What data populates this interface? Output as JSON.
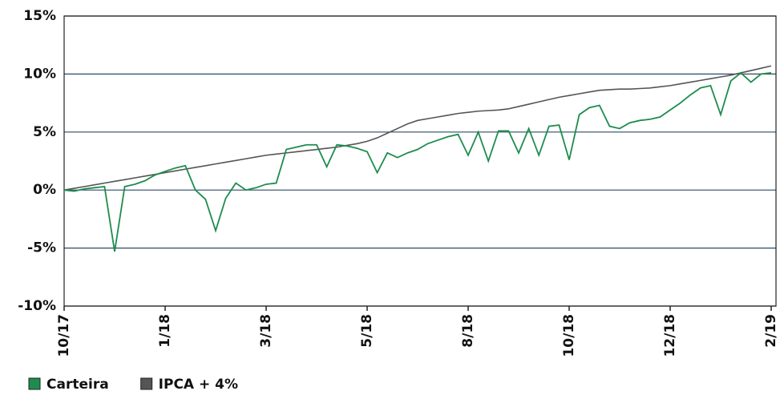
{
  "chart_data": {
    "type": "line",
    "categories": [
      "10/17",
      null,
      null,
      null,
      null,
      null,
      null,
      null,
      null,
      null,
      "1/18",
      null,
      null,
      null,
      null,
      null,
      null,
      null,
      null,
      null,
      "3/18",
      null,
      null,
      null,
      null,
      null,
      null,
      null,
      null,
      null,
      "5/18",
      null,
      null,
      null,
      null,
      null,
      null,
      null,
      null,
      null,
      "8/18",
      null,
      null,
      null,
      null,
      null,
      null,
      null,
      null,
      null,
      "10/18",
      null,
      null,
      null,
      null,
      null,
      null,
      null,
      null,
      null,
      "12/18",
      null,
      null,
      null,
      null,
      null,
      null,
      null,
      null,
      null,
      "2/19"
    ],
    "series": [
      {
        "name": "Carteira",
        "color": "#1e8c4e",
        "values": [
          0,
          -0.1,
          0.1,
          0.2,
          0.3,
          -5.3,
          0.3,
          0.5,
          0.8,
          1.3,
          1.6,
          1.9,
          2.1,
          0.0,
          -0.8,
          -3.5,
          -0.7,
          0.6,
          0.0,
          0.2,
          0.5,
          0.6,
          3.5,
          3.7,
          3.9,
          3.9,
          2.0,
          3.9,
          3.8,
          3.6,
          3.3,
          1.5,
          3.2,
          2.8,
          3.2,
          3.5,
          4.0,
          4.3,
          4.6,
          4.8,
          3.0,
          5.0,
          2.5,
          5.1,
          5.1,
          3.2,
          5.3,
          3.0,
          5.5,
          5.6,
          2.6,
          6.5,
          7.1,
          7.3,
          5.5,
          5.3,
          5.8,
          6.0,
          6.1,
          6.3,
          6.9,
          7.5,
          8.2,
          8.8,
          9.0,
          6.5,
          9.4,
          10.1,
          9.3,
          10.0,
          10.1
        ]
      },
      {
        "name": "IPCA + 4%",
        "color": "#555555",
        "values": [
          0,
          0.15,
          0.3,
          0.45,
          0.6,
          0.75,
          0.9,
          1.05,
          1.2,
          1.35,
          1.5,
          1.65,
          1.8,
          1.95,
          2.1,
          2.25,
          2.4,
          2.55,
          2.7,
          2.85,
          3.0,
          3.1,
          3.2,
          3.3,
          3.4,
          3.5,
          3.6,
          3.7,
          3.85,
          4.0,
          4.2,
          4.5,
          4.9,
          5.3,
          5.7,
          6.0,
          6.15,
          6.3,
          6.45,
          6.6,
          6.7,
          6.8,
          6.85,
          6.9,
          7.0,
          7.2,
          7.4,
          7.6,
          7.8,
          8.0,
          8.15,
          8.3,
          8.45,
          8.6,
          8.65,
          8.7,
          8.7,
          8.75,
          8.8,
          8.9,
          9.0,
          9.15,
          9.3,
          9.45,
          9.6,
          9.75,
          9.9,
          10.1,
          10.3,
          10.5,
          10.7
        ]
      }
    ],
    "ylim": [
      -10,
      15
    ],
    "yticks": [
      {
        "value": -10,
        "label": "-10%"
      },
      {
        "value": -5,
        "label": "-5%"
      },
      {
        "value": 0,
        "label": "0%"
      },
      {
        "value": 5,
        "label": "5%"
      },
      {
        "value": 10,
        "label": "10%"
      },
      {
        "value": 15,
        "label": "15%"
      }
    ],
    "grid": true
  }
}
